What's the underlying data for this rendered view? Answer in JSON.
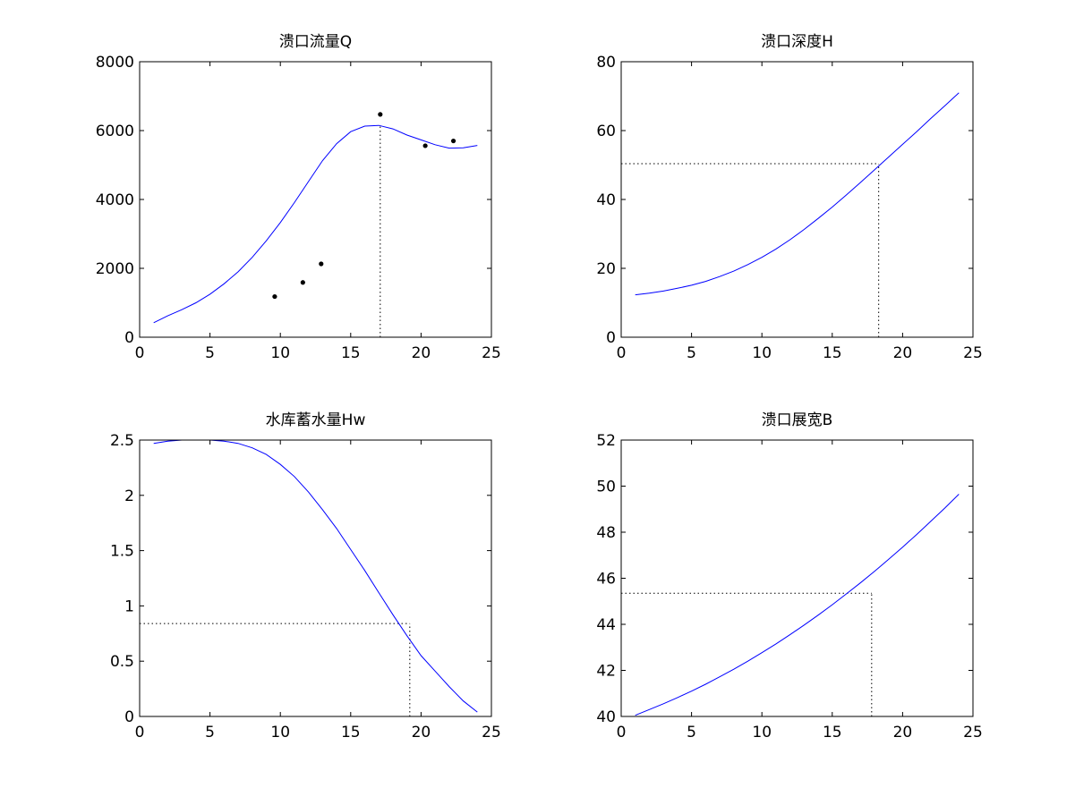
{
  "chart_data": [
    {
      "type": "line",
      "title": "溃口流量Q",
      "xlim": [
        0,
        25
      ],
      "ylim": [
        0,
        8000
      ],
      "xticks": [
        0,
        5,
        10,
        15,
        20,
        25
      ],
      "yticks": [
        0,
        2000,
        4000,
        6000,
        8000
      ],
      "xtick_labels": [
        "0",
        "5",
        "10",
        "15",
        "20",
        "25"
      ],
      "ytick_labels": [
        "0",
        "2000",
        "4000",
        "6000",
        "8000"
      ],
      "grid": false,
      "line_color": "#0000ff",
      "series": [
        {
          "x": [
            1,
            2,
            3,
            4,
            5,
            6,
            7,
            8,
            9,
            10,
            11,
            12,
            13,
            14,
            15,
            16,
            17,
            18,
            19,
            20,
            21,
            22,
            23,
            24
          ],
          "y": [
            420,
            620,
            800,
            1000,
            1250,
            1550,
            1900,
            2320,
            2800,
            3330,
            3910,
            4520,
            5130,
            5620,
            5970,
            6130,
            6150,
            6050,
            5870,
            5730,
            5590,
            5490,
            5500,
            5570
          ]
        }
      ],
      "points": {
        "color": "#000000",
        "x": [
          9.6,
          11.6,
          12.9,
          17.1,
          20.3,
          22.3
        ],
        "y": [
          1180,
          1590,
          2130,
          6470,
          5560,
          5700
        ]
      },
      "guides": [
        {
          "type": "vertical",
          "x": 17.1,
          "y": 6150
        }
      ]
    },
    {
      "type": "line",
      "title": "溃口深度H",
      "xlim": [
        0,
        25
      ],
      "ylim": [
        0,
        80
      ],
      "xticks": [
        0,
        5,
        10,
        15,
        20,
        25
      ],
      "yticks": [
        0,
        20,
        40,
        60,
        80
      ],
      "xtick_labels": [
        "0",
        "5",
        "10",
        "15",
        "20",
        "25"
      ],
      "ytick_labels": [
        "0",
        "20",
        "40",
        "60",
        "80"
      ],
      "grid": false,
      "line_color": "#0000ff",
      "series": [
        {
          "x": [
            1,
            2,
            3,
            4,
            5,
            6,
            7,
            8,
            9,
            10,
            11,
            12,
            13,
            14,
            15,
            16,
            17,
            18,
            19,
            20,
            21,
            22,
            23,
            24
          ],
          "y": [
            12.3,
            12.8,
            13.4,
            14.2,
            15.1,
            16.2,
            17.6,
            19.2,
            21.1,
            23.2,
            25.6,
            28.3,
            31.3,
            34.5,
            37.8,
            41.3,
            44.9,
            48.6,
            52.3,
            56.0,
            59.7,
            63.5,
            67.2,
            71.0
          ]
        }
      ],
      "guides": [
        {
          "type": "crosshair",
          "x": 18.3,
          "y": 50.4
        }
      ]
    },
    {
      "type": "line",
      "title": "水库蓄水量Hw",
      "xlim": [
        0,
        25
      ],
      "ylim": [
        0,
        2.5
      ],
      "xticks": [
        0,
        5,
        10,
        15,
        20,
        25
      ],
      "yticks": [
        0,
        0.5,
        1,
        1.5,
        2,
        2.5
      ],
      "xtick_labels": [
        "0",
        "5",
        "10",
        "15",
        "20",
        "25"
      ],
      "ytick_labels": [
        "0",
        "0.5",
        "1",
        "1.5",
        "2",
        "2.5"
      ],
      "grid": false,
      "line_color": "#0000ff",
      "series": [
        {
          "x": [
            1,
            2,
            3,
            4,
            5,
            6,
            7,
            8,
            9,
            10,
            11,
            12,
            13,
            14,
            15,
            16,
            17,
            18,
            19,
            20,
            21,
            22,
            23,
            24
          ],
          "y": [
            2.47,
            2.49,
            2.5,
            2.5,
            2.5,
            2.49,
            2.47,
            2.43,
            2.37,
            2.28,
            2.17,
            2.03,
            1.87,
            1.7,
            1.51,
            1.32,
            1.12,
            0.92,
            0.73,
            0.55,
            0.41,
            0.27,
            0.14,
            0.04
          ]
        }
      ],
      "guides": [
        {
          "type": "crosshair",
          "x": 19.2,
          "y": 0.84
        }
      ]
    },
    {
      "type": "line",
      "title": "溃口展宽B",
      "xlim": [
        0,
        25
      ],
      "ylim": [
        40,
        52
      ],
      "xticks": [
        0,
        5,
        10,
        15,
        20,
        25
      ],
      "yticks": [
        40,
        42,
        44,
        46,
        48,
        50,
        52
      ],
      "xtick_labels": [
        "0",
        "5",
        "10",
        "15",
        "20",
        "25"
      ],
      "ytick_labels": [
        "40",
        "42",
        "44",
        "46",
        "48",
        "50",
        "52"
      ],
      "grid": false,
      "line_color": "#0000ff",
      "series": [
        {
          "x": [
            1,
            2,
            3,
            4,
            5,
            6,
            7,
            8,
            9,
            10,
            11,
            12,
            13,
            14,
            15,
            16,
            17,
            18,
            19,
            20,
            21,
            22,
            23,
            24
          ],
          "y": [
            40.05,
            40.3,
            40.55,
            40.82,
            41.1,
            41.4,
            41.72,
            42.05,
            42.4,
            42.77,
            43.15,
            43.55,
            43.97,
            44.4,
            44.85,
            45.32,
            45.8,
            46.3,
            46.82,
            47.35,
            47.9,
            48.47,
            49.05,
            49.65
          ]
        }
      ],
      "guides": [
        {
          "type": "crosshair",
          "x": 17.8,
          "y": 45.35
        }
      ]
    }
  ]
}
